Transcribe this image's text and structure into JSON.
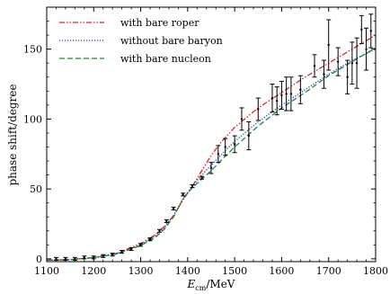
{
  "chart_data": {
    "type": "line",
    "xlabel": "E_cm/MeV",
    "xlabel_main": "E",
    "xlabel_sub": "cm",
    "xlabel_unit": "/MeV",
    "ylabel": "phase shift/degree",
    "xlim": [
      1100,
      1800
    ],
    "ylim": [
      -2,
      180
    ],
    "x_ticks": [
      1100,
      1200,
      1300,
      1400,
      1500,
      1600,
      1700,
      1800
    ],
    "y_ticks": [
      0,
      50,
      100,
      150
    ],
    "grid": false,
    "legend_position": "top-left",
    "series": [
      {
        "name": "with bare roper",
        "color": "#e8202a",
        "dash": "dash-dot-dot",
        "x": [
          1100,
          1150,
          1200,
          1250,
          1300,
          1330,
          1350,
          1370,
          1390,
          1410,
          1430,
          1450,
          1470,
          1500,
          1550,
          1600,
          1650,
          1700,
          1750,
          1800
        ],
        "y": [
          -1,
          -0.5,
          1,
          4,
          11,
          17,
          23,
          31,
          42,
          52,
          63,
          74,
          83,
          94,
          108,
          119,
          130,
          140,
          150,
          160
        ]
      },
      {
        "name": "without bare baryon",
        "color": "#2036d8",
        "dash": "dotted",
        "x": [
          1100,
          1150,
          1200,
          1250,
          1300,
          1330,
          1350,
          1370,
          1390,
          1410,
          1430,
          1450,
          1470,
          1500,
          1550,
          1600,
          1650,
          1700,
          1750,
          1800
        ],
        "y": [
          -1,
          -0.5,
          0.8,
          3.5,
          10,
          16,
          22,
          31,
          43,
          52,
          60,
          67,
          74,
          84,
          98,
          110,
          121,
          132,
          142,
          150
        ]
      },
      {
        "name": "with bare nucleon",
        "color": "#1f8a2e",
        "dash": "dashed",
        "x": [
          1100,
          1150,
          1200,
          1250,
          1300,
          1330,
          1350,
          1370,
          1390,
          1410,
          1430,
          1450,
          1470,
          1500,
          1550,
          1600,
          1650,
          1700,
          1750,
          1800
        ],
        "y": [
          -1,
          -0.5,
          0.8,
          3.5,
          9.5,
          15,
          21,
          30,
          43,
          51,
          57,
          63,
          70,
          80,
          95,
          108,
          119,
          131,
          141,
          151
        ]
      }
    ],
    "data_points": {
      "color": "#000000",
      "x": [
        1120,
        1140,
        1160,
        1180,
        1200,
        1220,
        1240,
        1260,
        1280,
        1300,
        1320,
        1340,
        1355,
        1370,
        1390,
        1410,
        1430,
        1450,
        1465,
        1480,
        1500,
        1515,
        1530,
        1550,
        1580,
        1590,
        1600,
        1610,
        1620,
        1640,
        1670,
        1690,
        1700,
        1720,
        1740,
        1750,
        1760,
        1770,
        1780,
        1790
      ],
      "y": [
        0,
        0,
        0,
        1,
        1,
        2,
        3,
        5,
        7,
        10,
        14,
        20,
        27,
        36,
        46,
        52,
        58,
        65,
        75,
        80,
        82,
        100,
        88,
        107,
        115,
        113,
        117,
        118,
        118,
        121,
        138,
        132,
        153,
        141,
        130,
        140,
        140,
        164,
        150,
        163
      ],
      "err": [
        1,
        1,
        1,
        1,
        1,
        1,
        1,
        1,
        1,
        1,
        1,
        1,
        1,
        1,
        1,
        1,
        1,
        4,
        6,
        6,
        6,
        8,
        10,
        8,
        10,
        10,
        10,
        12,
        12,
        10,
        8,
        10,
        18,
        10,
        12,
        15,
        18,
        10,
        15,
        12
      ]
    }
  }
}
